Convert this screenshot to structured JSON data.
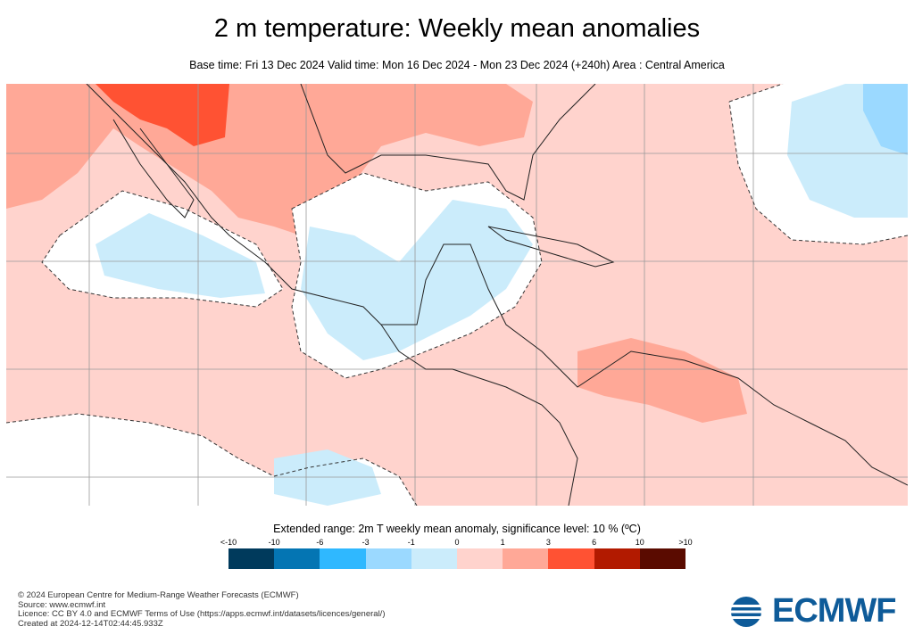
{
  "title": "2 m temperature: Weekly mean anomalies",
  "subtitle": "Base time: Fri 13 Dec 2024 Valid time: Mon 16 Dec 2024 - Mon 23 Dec 2024 (+240h) Area : Central America",
  "legend": {
    "title": "Extended range: 2m T weekly mean anomaly, significance level: 10 % (ºC)",
    "ticks": [
      "<-10",
      "-10",
      "-6",
      "-3",
      "-1",
      "0",
      "1",
      "3",
      "6",
      "10",
      ">10"
    ],
    "colors": [
      "#003a5c",
      "#0475b3",
      "#2fb8ff",
      "#9bd9ff",
      "#cbecfb",
      "#ffd3cd",
      "#ffa897",
      "#ff5233",
      "#b21a00",
      "#5a0b00"
    ]
  },
  "footer": [
    "© 2024 European Centre for Medium-Range Weather Forecasts (ECMWF)",
    "Source: www.ecmwf.int",
    "Licence: CC BY 4.0 and ECMWF Terms of Use (https://apps.ecmwf.int/datasets/licences/general/)",
    "Created at 2024-12-14T02:44:45.933Z"
  ],
  "logo": {
    "text": "ECMWF",
    "color": "#0e5b99"
  }
}
